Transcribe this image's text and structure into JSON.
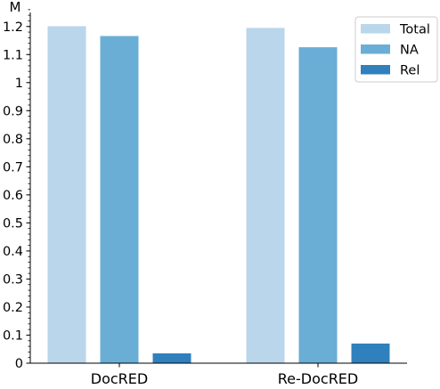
{
  "chart_data": {
    "type": "bar",
    "title": "",
    "xlabel": "",
    "ylabel": "",
    "unit_label": "M",
    "categories": [
      "DocRED",
      "Re-DocRED"
    ],
    "series": [
      {
        "name": "Total",
        "values": [
          1.201,
          1.195
        ],
        "color": "#bad6eb"
      },
      {
        "name": "NA",
        "values": [
          1.166,
          1.126
        ],
        "color": "#6aaed6"
      },
      {
        "name": "Rel",
        "values": [
          0.035,
          0.07
        ],
        "color": "#3080bd"
      }
    ],
    "ylim": [
      0,
      1.25
    ],
    "yticks": [
      0,
      0.1,
      0.2,
      0.3,
      0.4,
      0.5,
      0.6,
      0.7,
      0.8,
      0.9,
      1,
      1.1,
      1.2
    ],
    "ytick_labels": [
      "0",
      "0.1",
      "0.2",
      "0.3",
      "0.4",
      "0.5",
      "0.6",
      "0.7",
      "0.8",
      "0.9",
      "1",
      "1.1",
      "1.2"
    ],
    "minor_ticks": true,
    "grid": false,
    "legend_position": "top-right"
  }
}
